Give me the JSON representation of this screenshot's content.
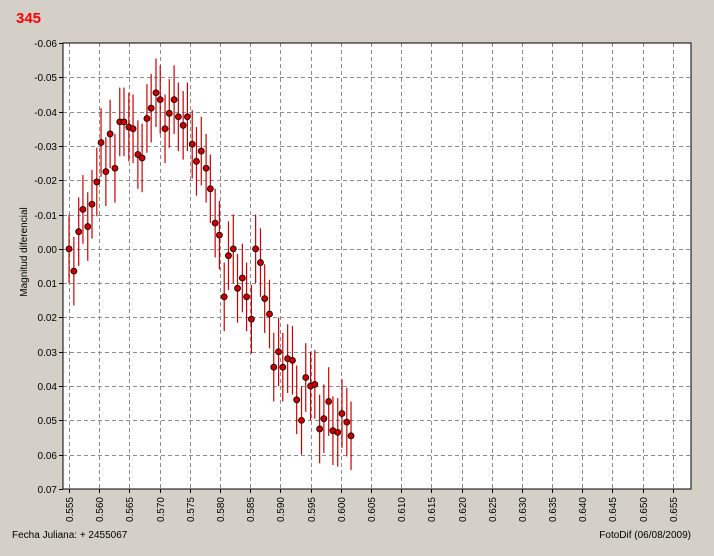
{
  "chart_data": {
    "type": "scatter",
    "title": "345",
    "ylabel": "Magnitud diferencial",
    "xlabel": "",
    "ylim": [
      -0.06,
      0.07
    ],
    "y_inverted": true,
    "xlim": [
      0.554,
      0.658
    ],
    "grid": true,
    "marker_color": "#cc0000",
    "errorbar_color": "#cc0000",
    "title_color": "#ff0000",
    "x_ticks": [
      "0.555",
      "0.560",
      "0.565",
      "0.570",
      "0.575",
      "0.580",
      "0.585",
      "0.590",
      "0.595",
      "0.600",
      "0.605",
      "0.610",
      "0.615",
      "0.620",
      "0.625",
      "0.630",
      "0.635",
      "0.640",
      "0.645",
      "0.650",
      "0.655"
    ],
    "y_ticks": [
      "-0.06",
      "-0.05",
      "-0.04",
      "-0.03",
      "-0.02",
      "-0.01",
      "0.00",
      "0.01",
      "0.02",
      "0.03",
      "0.04",
      "0.05",
      "0.06",
      "0.07"
    ],
    "footer_left": "Fecha Juliana:  + 2455067",
    "footer_right": "FotoDif (06/08/2009)",
    "points": [
      {
        "x": 0.555,
        "y": 0.0,
        "err": 0.01
      },
      {
        "x": 0.5558,
        "y": 0.0065,
        "err": 0.01
      },
      {
        "x": 0.5566,
        "y": -0.005,
        "err": 0.01
      },
      {
        "x": 0.5573,
        "y": -0.0115,
        "err": 0.01
      },
      {
        "x": 0.5581,
        "y": -0.0065,
        "err": 0.01
      },
      {
        "x": 0.5588,
        "y": -0.013,
        "err": 0.01
      },
      {
        "x": 0.5596,
        "y": -0.0195,
        "err": 0.01
      },
      {
        "x": 0.5603,
        "y": -0.031,
        "err": 0.01
      },
      {
        "x": 0.5611,
        "y": -0.0225,
        "err": 0.01
      },
      {
        "x": 0.5618,
        "y": -0.0335,
        "err": 0.01
      },
      {
        "x": 0.5626,
        "y": -0.0235,
        "err": 0.01
      },
      {
        "x": 0.5634,
        "y": -0.037,
        "err": 0.01
      },
      {
        "x": 0.5641,
        "y": -0.037,
        "err": 0.01
      },
      {
        "x": 0.5649,
        "y": -0.0355,
        "err": 0.01
      },
      {
        "x": 0.5656,
        "y": -0.035,
        "err": 0.01
      },
      {
        "x": 0.5664,
        "y": -0.0275,
        "err": 0.01
      },
      {
        "x": 0.5671,
        "y": -0.0265,
        "err": 0.01
      },
      {
        "x": 0.5679,
        "y": -0.038,
        "err": 0.01
      },
      {
        "x": 0.5686,
        "y": -0.041,
        "err": 0.01
      },
      {
        "x": 0.5694,
        "y": -0.0455,
        "err": 0.01
      },
      {
        "x": 0.5701,
        "y": -0.0435,
        "err": 0.01
      },
      {
        "x": 0.5709,
        "y": -0.035,
        "err": 0.01
      },
      {
        "x": 0.5716,
        "y": -0.0395,
        "err": 0.01
      },
      {
        "x": 0.5724,
        "y": -0.0435,
        "err": 0.01
      },
      {
        "x": 0.5731,
        "y": -0.0385,
        "err": 0.01
      },
      {
        "x": 0.5739,
        "y": -0.036,
        "err": 0.01
      },
      {
        "x": 0.5746,
        "y": -0.0385,
        "err": 0.01
      },
      {
        "x": 0.5754,
        "y": -0.0305,
        "err": 0.01
      },
      {
        "x": 0.5761,
        "y": -0.0255,
        "err": 0.01
      },
      {
        "x": 0.5769,
        "y": -0.0285,
        "err": 0.01
      },
      {
        "x": 0.5777,
        "y": -0.0235,
        "err": 0.01
      },
      {
        "x": 0.5784,
        "y": -0.0175,
        "err": 0.01
      },
      {
        "x": 0.5792,
        "y": -0.0075,
        "err": 0.01
      },
      {
        "x": 0.5799,
        "y": -0.004,
        "err": 0.01
      },
      {
        "x": 0.5807,
        "y": 0.014,
        "err": 0.01
      },
      {
        "x": 0.5814,
        "y": 0.002,
        "err": 0.01
      },
      {
        "x": 0.5822,
        "y": 0.0,
        "err": 0.01
      },
      {
        "x": 0.5829,
        "y": 0.0115,
        "err": 0.01
      },
      {
        "x": 0.5837,
        "y": 0.0085,
        "err": 0.01
      },
      {
        "x": 0.5844,
        "y": 0.014,
        "err": 0.01
      },
      {
        "x": 0.5852,
        "y": 0.0205,
        "err": 0.01
      },
      {
        "x": 0.5859,
        "y": 0.0,
        "err": 0.01
      },
      {
        "x": 0.5867,
        "y": 0.004,
        "err": 0.01
      },
      {
        "x": 0.5874,
        "y": 0.0145,
        "err": 0.01
      },
      {
        "x": 0.5882,
        "y": 0.019,
        "err": 0.01
      },
      {
        "x": 0.5889,
        "y": 0.0345,
        "err": 0.01
      },
      {
        "x": 0.5897,
        "y": 0.03,
        "err": 0.01
      },
      {
        "x": 0.5904,
        "y": 0.0345,
        "err": 0.01
      },
      {
        "x": 0.5912,
        "y": 0.032,
        "err": 0.01
      },
      {
        "x": 0.592,
        "y": 0.0325,
        "err": 0.01
      },
      {
        "x": 0.5927,
        "y": 0.044,
        "err": 0.01
      },
      {
        "x": 0.5935,
        "y": 0.05,
        "err": 0.01
      },
      {
        "x": 0.5942,
        "y": 0.0375,
        "err": 0.01
      },
      {
        "x": 0.595,
        "y": 0.04,
        "err": 0.01
      },
      {
        "x": 0.5957,
        "y": 0.0395,
        "err": 0.01
      },
      {
        "x": 0.5965,
        "y": 0.0525,
        "err": 0.01
      },
      {
        "x": 0.5972,
        "y": 0.0495,
        "err": 0.01
      },
      {
        "x": 0.598,
        "y": 0.0445,
        "err": 0.01
      },
      {
        "x": 0.5987,
        "y": 0.053,
        "err": 0.01
      },
      {
        "x": 0.5995,
        "y": 0.0535,
        "err": 0.01
      },
      {
        "x": 0.6002,
        "y": 0.048,
        "err": 0.01
      },
      {
        "x": 0.601,
        "y": 0.0505,
        "err": 0.01
      },
      {
        "x": 0.6017,
        "y": 0.0545,
        "err": 0.01
      }
    ]
  }
}
